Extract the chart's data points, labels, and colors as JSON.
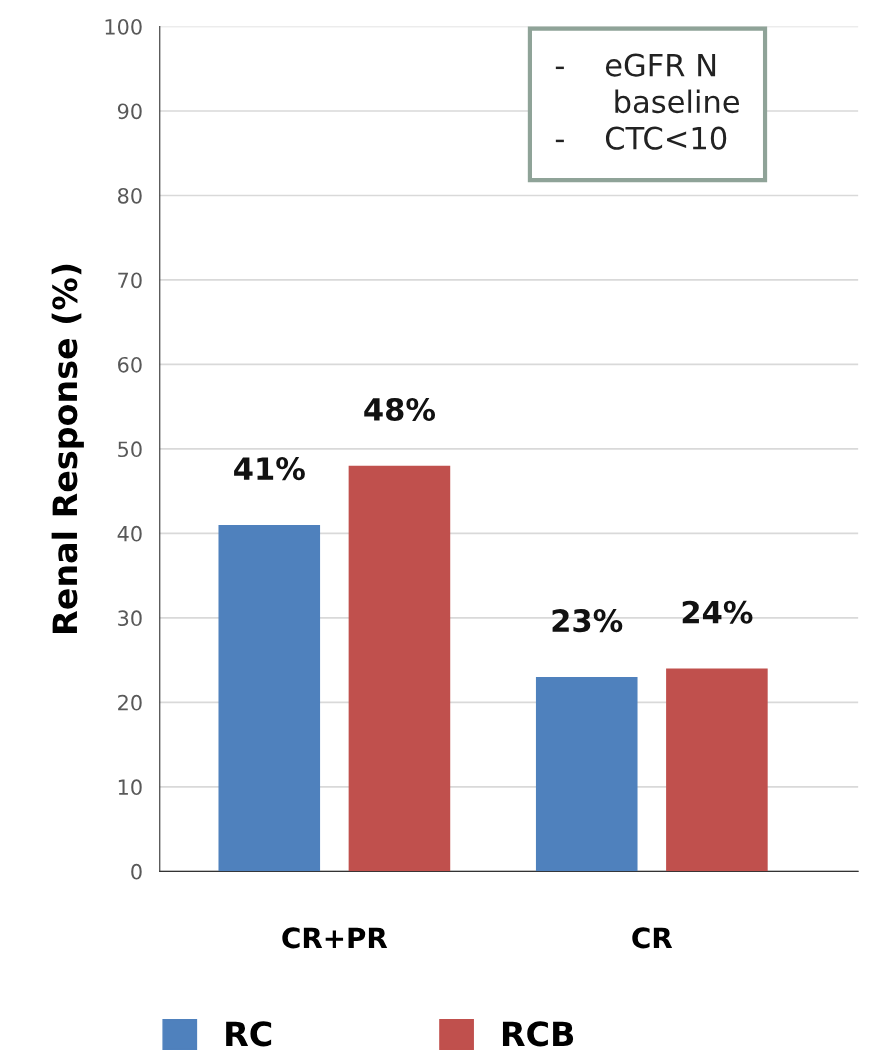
{
  "chart_data": {
    "type": "bar",
    "ylabel": "Renal Response (%)",
    "categories": [
      "CR+PR",
      "CR"
    ],
    "series": [
      {
        "name": "RC",
        "color": "#4f81bd",
        "values": [
          41,
          23
        ],
        "value_labels": [
          "41%",
          "23%"
        ]
      },
      {
        "name": "RCB",
        "color": "#c0504d",
        "values": [
          48,
          24
        ],
        "value_labels": [
          "48%",
          "24%"
        ]
      }
    ],
    "ylim": [
      0,
      100
    ],
    "yticks": [
      0,
      10,
      20,
      30,
      40,
      50,
      60,
      70,
      80,
      90,
      100
    ],
    "grid": "y",
    "legend": "bottom",
    "annotations": [
      "-    eGFR N\n      baseline\n-    CTC<10"
    ]
  }
}
